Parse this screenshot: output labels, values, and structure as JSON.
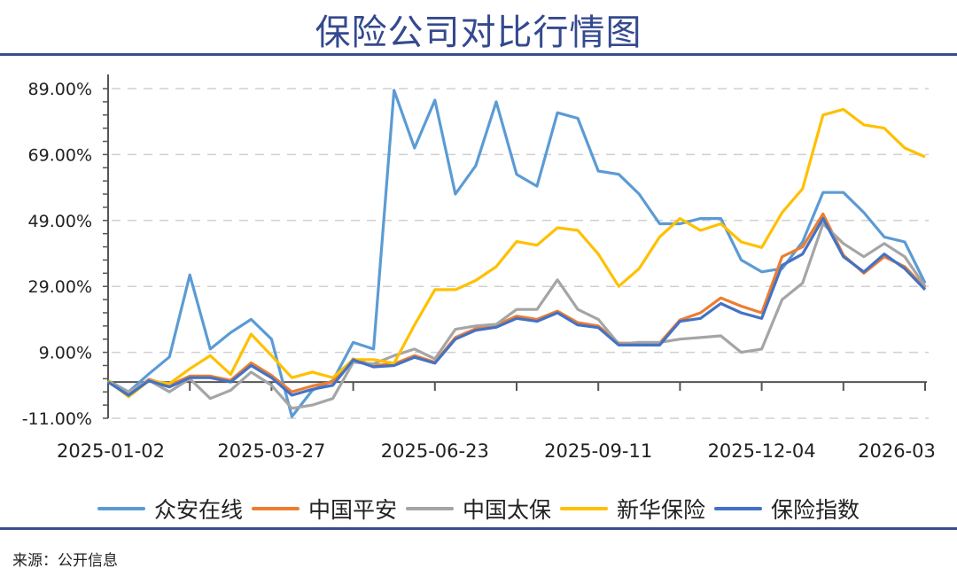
{
  "chart_data": {
    "type": "line",
    "title": "保险公司对比行情图",
    "xlabel": "",
    "ylabel": "",
    "ylim": [
      -11,
      89
    ],
    "y_ticks": [
      "89.00%",
      "69.00%",
      "49.00%",
      "29.00%",
      "9.00%",
      "-11.00%"
    ],
    "y_tick_values": [
      89,
      69,
      49,
      29,
      9,
      -11
    ],
    "x_tick_labels": [
      "2025-01-02",
      "2025-03-27",
      "2025-06-23",
      "2025-09-11",
      "2025-12-04",
      "2026-03"
    ],
    "grid": "horizontal dashed",
    "legend": "bottom",
    "series": [
      {
        "name": "众安在线",
        "color": "#5b9bd5",
        "values": [
          0.4,
          -3,
          2.5,
          7.6,
          32.5,
          10,
          15,
          19,
          13,
          -10.5,
          -2.5,
          0.4,
          12,
          10,
          88.5,
          71,
          85.5,
          57,
          65.6,
          85,
          63,
          59.4,
          81.7,
          80,
          64,
          63,
          57,
          48,
          48,
          49.6,
          49.6,
          37,
          33.4,
          34.4,
          42.5,
          57.5,
          57.5,
          51.4,
          44,
          42.5,
          30
        ]
      },
      {
        "name": "中国平安",
        "color": "#ed7d31",
        "values": [
          0,
          -3.5,
          0.8,
          -1,
          1.8,
          1.8,
          0.5,
          5.8,
          2,
          -3,
          -1.2,
          0,
          7,
          5,
          5.5,
          8,
          6,
          13.5,
          16.2,
          17.2,
          20,
          19,
          21.5,
          18,
          17,
          11.8,
          11.8,
          11.8,
          18.8,
          21,
          25.5,
          23,
          21,
          38,
          41,
          51,
          38.5,
          33,
          38,
          35,
          28.5
        ]
      },
      {
        "name": "中国太保",
        "color": "#a5a5a5",
        "values": [
          0,
          -3,
          0.5,
          -3,
          1,
          -5,
          -2.5,
          3,
          -1,
          -8,
          -7,
          -5,
          6,
          5.5,
          8,
          10,
          7,
          16,
          17,
          17.5,
          22,
          22,
          31,
          22,
          19,
          11.5,
          12,
          12,
          13,
          13.5,
          14,
          9,
          10,
          25,
          30,
          48,
          42,
          38,
          42,
          38,
          29
        ]
      },
      {
        "name": "新华保险",
        "color": "#ffc000",
        "values": [
          0.4,
          -4.5,
          0.4,
          -0.5,
          4,
          8,
          2.3,
          14.5,
          8,
          1.3,
          3,
          1.3,
          6.8,
          6.8,
          5.7,
          17.3,
          28,
          28,
          30.8,
          35,
          42.6,
          41.5,
          46.8,
          46,
          38.8,
          29,
          34.4,
          44,
          49.6,
          46,
          48,
          42.5,
          40.8,
          51.4,
          58.6,
          81,
          82.7,
          78,
          77,
          71,
          68.3
        ]
      },
      {
        "name": "保险指数",
        "color": "#4472c4",
        "values": [
          0,
          -4,
          0.4,
          -1.5,
          1.3,
          1.3,
          0,
          5,
          1.3,
          -4,
          -2.2,
          -1,
          6.7,
          4.6,
          5,
          7.5,
          5.7,
          13,
          15.7,
          16.6,
          19.3,
          18.4,
          21,
          17.3,
          16.5,
          11.2,
          11.2,
          11.2,
          18.4,
          19.3,
          23.8,
          21,
          19.3,
          35.4,
          38.8,
          49.6,
          38,
          33.4,
          38.8,
          34.4,
          28
        ]
      }
    ]
  },
  "source": "来源：公开信息"
}
